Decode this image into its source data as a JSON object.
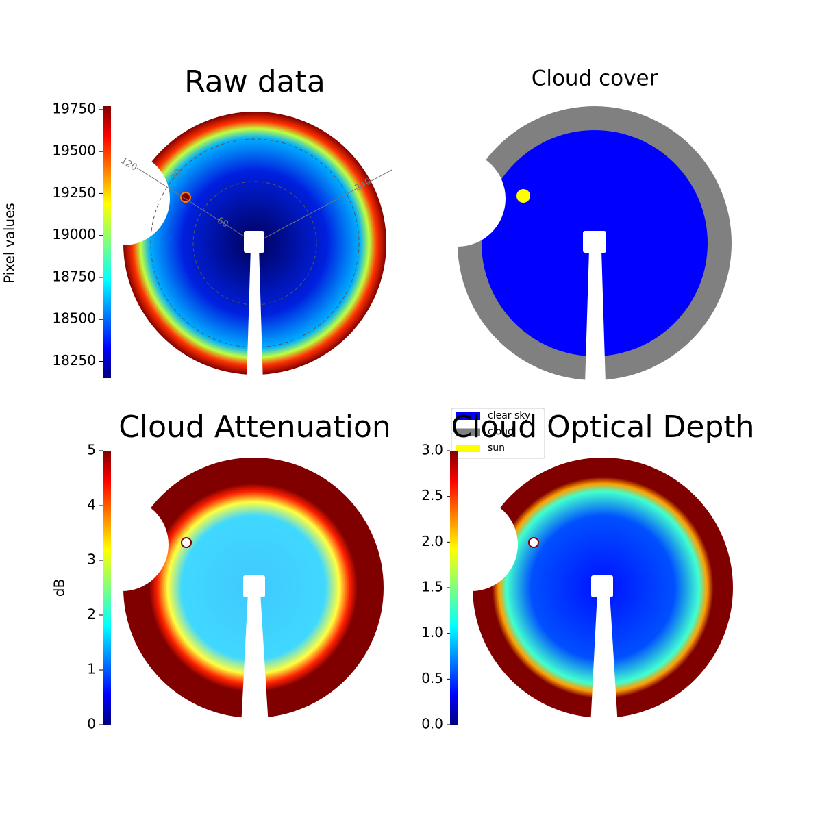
{
  "chart_data": [
    {
      "type": "image",
      "title": "Raw data",
      "colorbar": {
        "label": "Pixel values",
        "lim": [
          18150,
          19770
        ],
        "ticks": [
          18250,
          18500,
          18750,
          19000,
          19250,
          19500,
          19750
        ],
        "colormap": "jet"
      },
      "annotations": [
        "120",
        "240",
        "30",
        "60"
      ]
    },
    {
      "type": "image",
      "title": "Cloud cover",
      "legend": [
        {
          "name": "clear sky",
          "color": "#0000ff"
        },
        {
          "name": "cloud",
          "color": "#808080"
        },
        {
          "name": "sun",
          "color": "#ffff00"
        }
      ]
    },
    {
      "type": "image",
      "title": "Cloud Attenuation",
      "colorbar": {
        "label": "dB",
        "lim": [
          0,
          5
        ],
        "ticks": [
          0,
          1,
          2,
          3,
          4,
          5
        ],
        "colormap": "jet"
      }
    },
    {
      "type": "image",
      "title": "Cloud Optical Depth",
      "colorbar": {
        "lim": [
          0,
          3
        ],
        "ticks": [
          {
            "value": 0,
            "label": "0.0"
          },
          0.5,
          {
            "value": 1,
            "label": "1.0"
          },
          1.5,
          {
            "value": 2,
            "label": "2.0"
          },
          2.5,
          {
            "value": 3,
            "label": "3.0"
          }
        ],
        "colormap": "jet"
      }
    }
  ]
}
